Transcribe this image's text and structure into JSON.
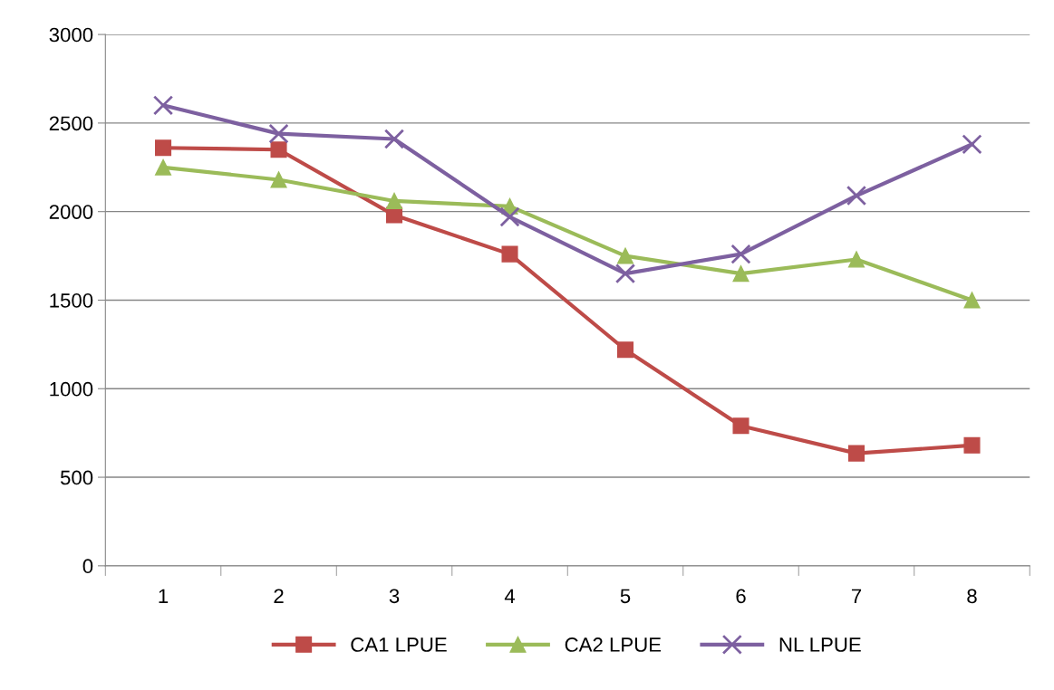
{
  "chart_data": {
    "type": "line",
    "categories": [
      "1",
      "2",
      "3",
      "4",
      "5",
      "6",
      "7",
      "8"
    ],
    "series": [
      {
        "name": "CA1 LPUE",
        "color": "#be4b48",
        "marker": "square",
        "values": [
          2360,
          2350,
          1980,
          1760,
          1220,
          790,
          635,
          680
        ]
      },
      {
        "name": "CA2 LPUE",
        "color": "#9bbb59",
        "marker": "triangle",
        "values": [
          2250,
          2180,
          2060,
          2030,
          1750,
          1650,
          1730,
          1500
        ]
      },
      {
        "name": "NL LPUE",
        "color": "#7d60a0",
        "marker": "cross",
        "values": [
          2600,
          2440,
          2410,
          1970,
          1650,
          1760,
          2090,
          2380
        ]
      }
    ],
    "ylim": [
      0,
      3000
    ],
    "yticks": [
      0,
      500,
      1000,
      1500,
      2000,
      2500,
      3000
    ],
    "grid": "y",
    "legend": "bottom",
    "line_style": "solid"
  }
}
